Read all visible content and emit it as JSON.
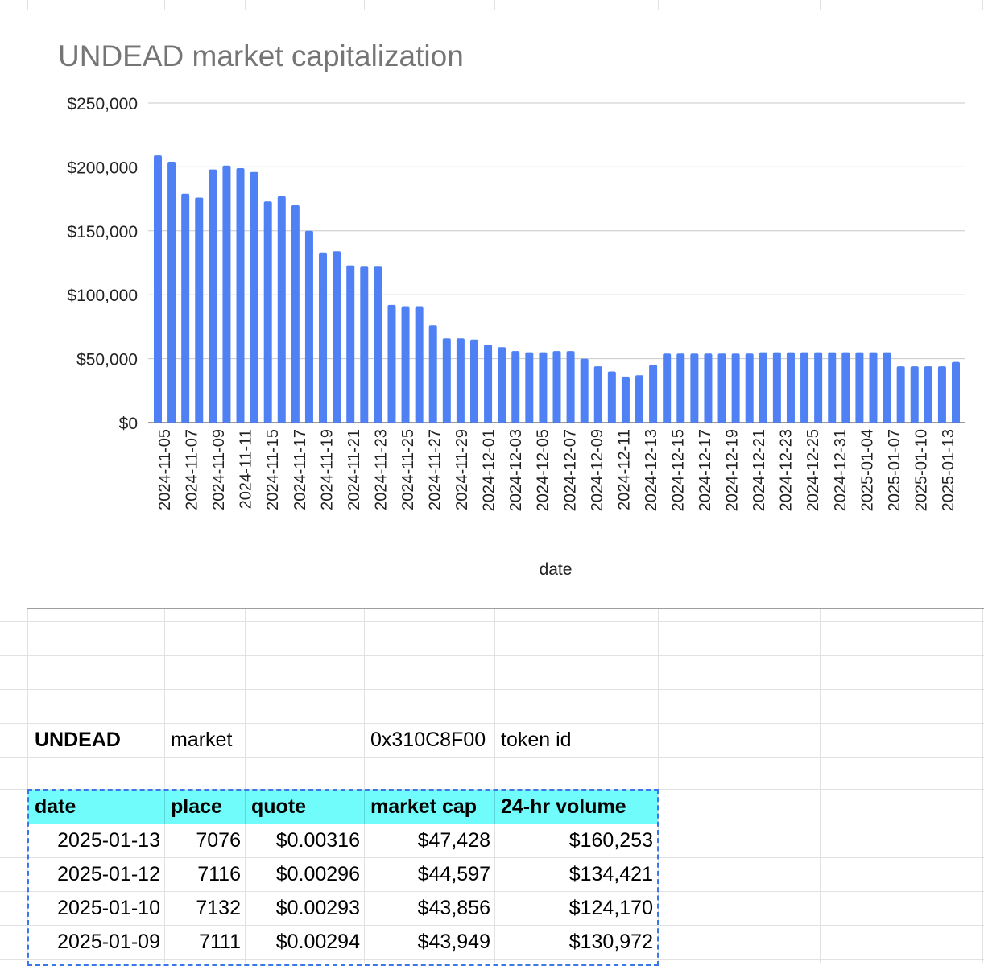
{
  "chart_data": {
    "type": "bar",
    "title": "UNDEAD market capitalization",
    "xlabel": "date",
    "ylabel": "",
    "ylim": [
      0,
      250000
    ],
    "yticks": [
      "$250,000",
      "$200,000",
      "$150,000",
      "$100,000",
      "$50,000",
      "$0"
    ],
    "ytick_values": [
      250000,
      200000,
      150000,
      100000,
      50000,
      0
    ],
    "grid": true,
    "legend": "none",
    "bar_color": "#4f81f5",
    "xtick_labels": [
      "2024-11-05",
      "2024-11-07",
      "2024-11-09",
      "2024-11-11",
      "2024-11-15",
      "2024-11-17",
      "2024-11-19",
      "2024-11-21",
      "2024-11-23",
      "2024-11-25",
      "2024-11-27",
      "2024-11-29",
      "2024-12-01",
      "2024-12-03",
      "2024-12-05",
      "2024-12-07",
      "2024-12-09",
      "2024-12-11",
      "2024-12-13",
      "2024-12-15",
      "2024-12-17",
      "2024-12-19",
      "2024-12-21",
      "2024-12-23",
      "2024-12-25",
      "2024-12-31",
      "2025-01-04",
      "2025-01-07",
      "2025-01-10",
      "2025-01-13"
    ],
    "values": [
      209000,
      204000,
      179000,
      176000,
      198000,
      201000,
      199000,
      196000,
      173000,
      177000,
      170000,
      150000,
      133000,
      134000,
      123000,
      122000,
      122000,
      92000,
      91000,
      91000,
      76000,
      66000,
      66000,
      65000,
      61000,
      59000,
      56000,
      55000,
      55000,
      56000,
      56000,
      50000,
      44000,
      40000,
      36000,
      37000,
      45000,
      54000,
      54000,
      54000,
      54000,
      54000,
      54000,
      54000,
      55000,
      55000,
      55000,
      55000,
      55000,
      55000,
      55000,
      55000,
      55000,
      55000,
      44000,
      44000,
      44000,
      44000,
      47428
    ]
  },
  "sheet": {
    "title_row": {
      "token": "UNDEAD",
      "market_label": "market",
      "token_address": "0x310C8F00",
      "token_id_label": "token id"
    },
    "columns": [
      "date",
      "place",
      "quote",
      "market cap",
      "24-hr volume"
    ],
    "rows": [
      [
        "2025-01-13",
        "7076",
        "$0.00316",
        "$47,428",
        "$160,253"
      ],
      [
        "2025-01-12",
        "7116",
        "$0.00296",
        "$44,597",
        "$134,421"
      ],
      [
        "2025-01-10",
        "7132",
        "$0.00293",
        "$43,856",
        "$124,170"
      ],
      [
        "2025-01-09",
        "7111",
        "$0.00294",
        "$43,949",
        "$130,972"
      ]
    ]
  }
}
